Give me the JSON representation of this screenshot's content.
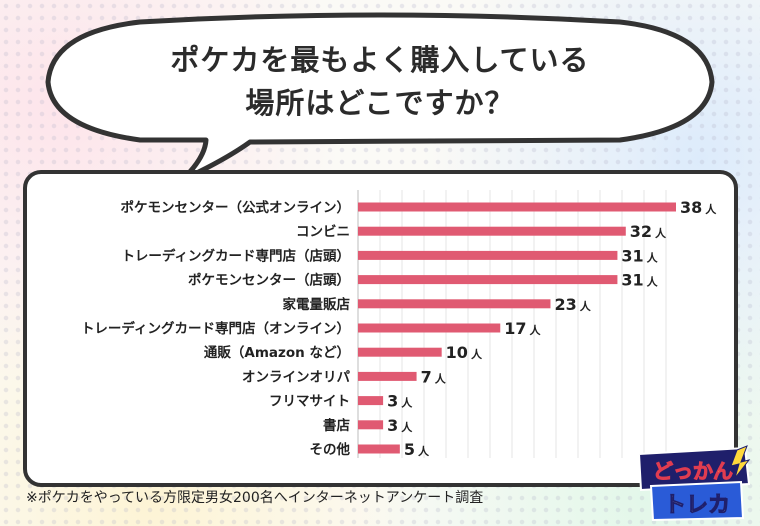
{
  "title": {
    "line1": "ポケカを最もよく購入している",
    "line2": "場所はどこですか？"
  },
  "chart_data": {
    "type": "bar",
    "orientation": "horizontal",
    "unit": "人",
    "categories": [
      "ポケモンセンター（公式オンライン）",
      "コンビニ",
      "トレーディングカード専門店（店頭）",
      "ポケモンセンター（店頭）",
      "家電量販店",
      "トレーディングカード専門店（オンライン）",
      "通販（Amazon など）",
      "オンラインオリパ",
      "フリマサイト",
      "書店",
      "その他"
    ],
    "values": [
      38,
      32,
      31,
      31,
      23,
      17,
      10,
      7,
      3,
      3,
      5
    ],
    "bar_color": "#e05a72",
    "grid": true,
    "xlim": [
      0,
      38
    ]
  },
  "footnote": "※ポケカをやっている方限定男女200名へインターネットアンケート調査",
  "logo": {
    "line1": "どっかん",
    "line2": "トレカ"
  }
}
